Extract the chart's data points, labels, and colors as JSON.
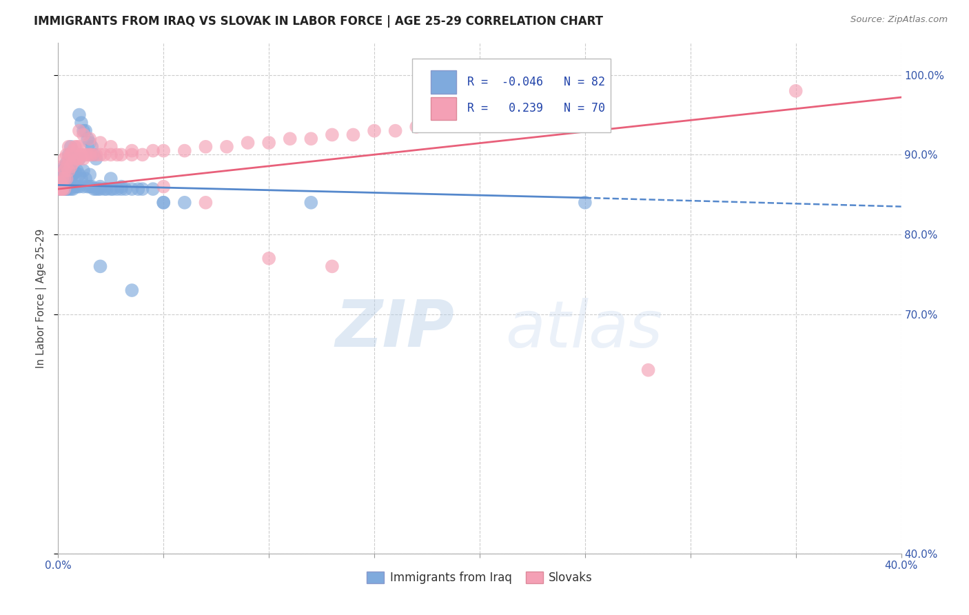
{
  "title": "IMMIGRANTS FROM IRAQ VS SLOVAK IN LABOR FORCE | AGE 25-29 CORRELATION CHART",
  "source": "Source: ZipAtlas.com",
  "ylabel": "In Labor Force | Age 25-29",
  "xlim": [
    0.0,
    0.4
  ],
  "ylim": [
    0.4,
    1.04
  ],
  "yticks": [
    0.4,
    0.7,
    0.8,
    0.9,
    1.0
  ],
  "xticks": [
    0.0,
    0.05,
    0.1,
    0.15,
    0.2,
    0.25,
    0.3,
    0.35,
    0.4
  ],
  "xtick_labels": [
    "0.0%",
    "",
    "",
    "",
    "",
    "",
    "",
    "",
    "40.0%"
  ],
  "ytick_labels": [
    "40.0%",
    "70.0%",
    "80.0%",
    "90.0%",
    "100.0%"
  ],
  "iraq_R": -0.046,
  "iraq_N": 82,
  "slovak_R": 0.239,
  "slovak_N": 70,
  "iraq_color": "#7faadd",
  "slovak_color": "#f4a0b5",
  "iraq_line_color": "#5588cc",
  "slovak_line_color": "#e8607a",
  "legend_iraq_label": "Immigrants from Iraq",
  "legend_slovak_label": "Slovaks",
  "watermark_zip": "ZIP",
  "watermark_atlas": "atlas",
  "iraq_points_x": [
    0.001,
    0.001,
    0.001,
    0.001,
    0.002,
    0.002,
    0.002,
    0.002,
    0.002,
    0.002,
    0.003,
    0.003,
    0.003,
    0.003,
    0.003,
    0.003,
    0.004,
    0.004,
    0.004,
    0.004,
    0.004,
    0.005,
    0.005,
    0.005,
    0.005,
    0.006,
    0.006,
    0.006,
    0.006,
    0.007,
    0.007,
    0.007,
    0.008,
    0.008,
    0.008,
    0.009,
    0.009,
    0.01,
    0.01,
    0.01,
    0.011,
    0.012,
    0.012,
    0.013,
    0.014,
    0.015,
    0.015,
    0.016,
    0.017,
    0.018,
    0.019,
    0.02,
    0.02,
    0.022,
    0.023,
    0.025,
    0.026,
    0.028,
    0.03,
    0.032,
    0.035,
    0.038,
    0.04,
    0.045,
    0.05,
    0.06,
    0.01,
    0.011,
    0.012,
    0.013,
    0.014,
    0.015,
    0.016,
    0.017,
    0.018,
    0.025,
    0.03,
    0.05,
    0.12,
    0.25,
    0.02,
    0.035
  ],
  "iraq_points_y": [
    0.857,
    0.857,
    0.857,
    0.86,
    0.857,
    0.857,
    0.857,
    0.857,
    0.87,
    0.88,
    0.857,
    0.857,
    0.857,
    0.865,
    0.875,
    0.885,
    0.857,
    0.857,
    0.87,
    0.88,
    0.89,
    0.857,
    0.87,
    0.885,
    0.9,
    0.857,
    0.87,
    0.89,
    0.91,
    0.857,
    0.875,
    0.895,
    0.86,
    0.878,
    0.895,
    0.86,
    0.88,
    0.86,
    0.875,
    0.895,
    0.87,
    0.86,
    0.88,
    0.87,
    0.86,
    0.86,
    0.875,
    0.86,
    0.857,
    0.857,
    0.857,
    0.857,
    0.86,
    0.857,
    0.857,
    0.857,
    0.857,
    0.857,
    0.857,
    0.857,
    0.857,
    0.857,
    0.857,
    0.857,
    0.84,
    0.84,
    0.95,
    0.94,
    0.93,
    0.93,
    0.92,
    0.915,
    0.91,
    0.9,
    0.895,
    0.87,
    0.86,
    0.84,
    0.84,
    0.84,
    0.76,
    0.73
  ],
  "slovak_points_x": [
    0.001,
    0.001,
    0.001,
    0.002,
    0.002,
    0.002,
    0.002,
    0.003,
    0.003,
    0.003,
    0.003,
    0.004,
    0.004,
    0.004,
    0.005,
    0.005,
    0.005,
    0.006,
    0.006,
    0.007,
    0.007,
    0.008,
    0.008,
    0.009,
    0.009,
    0.01,
    0.01,
    0.011,
    0.012,
    0.013,
    0.014,
    0.015,
    0.016,
    0.018,
    0.02,
    0.022,
    0.025,
    0.028,
    0.03,
    0.035,
    0.04,
    0.045,
    0.05,
    0.06,
    0.07,
    0.08,
    0.09,
    0.1,
    0.11,
    0.12,
    0.13,
    0.14,
    0.15,
    0.16,
    0.17,
    0.18,
    0.19,
    0.2,
    0.01,
    0.012,
    0.015,
    0.02,
    0.025,
    0.035,
    0.05,
    0.07,
    0.1,
    0.13,
    0.35,
    0.28
  ],
  "slovak_points_y": [
    0.857,
    0.857,
    0.865,
    0.857,
    0.857,
    0.87,
    0.885,
    0.857,
    0.87,
    0.88,
    0.895,
    0.87,
    0.885,
    0.9,
    0.88,
    0.895,
    0.91,
    0.885,
    0.9,
    0.89,
    0.905,
    0.895,
    0.91,
    0.895,
    0.91,
    0.895,
    0.91,
    0.9,
    0.895,
    0.9,
    0.9,
    0.9,
    0.9,
    0.9,
    0.9,
    0.9,
    0.9,
    0.9,
    0.9,
    0.9,
    0.9,
    0.905,
    0.905,
    0.905,
    0.91,
    0.91,
    0.915,
    0.915,
    0.92,
    0.92,
    0.925,
    0.925,
    0.93,
    0.93,
    0.935,
    0.94,
    0.945,
    0.95,
    0.93,
    0.925,
    0.92,
    0.915,
    0.91,
    0.905,
    0.86,
    0.84,
    0.77,
    0.76,
    0.98,
    0.63
  ],
  "iraq_trend": [
    0.0,
    0.862,
    0.25,
    0.846,
    0.4,
    0.835
  ],
  "slovak_trend": [
    0.0,
    0.857,
    0.4,
    0.972
  ]
}
